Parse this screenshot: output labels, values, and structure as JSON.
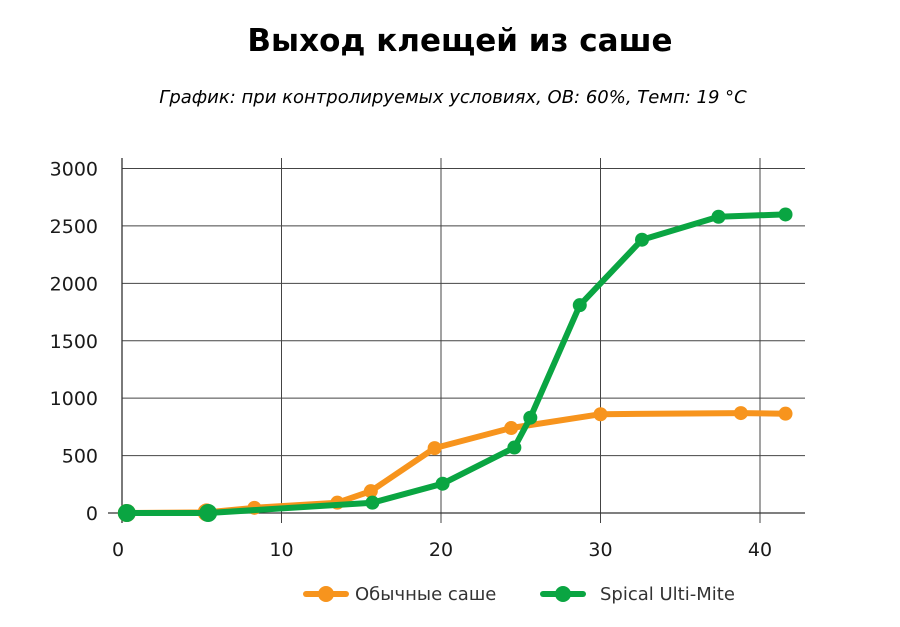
{
  "chart_data": {
    "type": "line",
    "title": "Выход клещей из саше",
    "subtitle": "График: при контролируемых условиях, ОВ: 60%, Темп: 19 °C",
    "xlabel": "",
    "ylabel": "",
    "xlim": [
      0,
      42
    ],
    "ylim": [
      0,
      3000
    ],
    "x_ticks": [
      0,
      10,
      20,
      30,
      40
    ],
    "y_ticks": [
      0,
      500,
      1000,
      1500,
      2000,
      2500,
      3000
    ],
    "grid": true,
    "legend_position": "bottom",
    "series": [
      {
        "name": "Обычные саше",
        "color": "#f7941d",
        "points": [
          {
            "x": 0.3,
            "y": 0
          },
          {
            "x": 5.3,
            "y": 5
          },
          {
            "x": 8.3,
            "y": 45
          },
          {
            "x": 13.5,
            "y": 90
          },
          {
            "x": 15.6,
            "y": 190
          },
          {
            "x": 19.6,
            "y": 565
          },
          {
            "x": 24.4,
            "y": 740
          },
          {
            "x": 30.0,
            "y": 860
          },
          {
            "x": 38.8,
            "y": 870
          },
          {
            "x": 41.6,
            "y": 865
          }
        ]
      },
      {
        "name": "Spical Ulti-Mite",
        "color": "#0aa542",
        "points": [
          {
            "x": 0.3,
            "y": 0
          },
          {
            "x": 5.4,
            "y": 0
          },
          {
            "x": 15.7,
            "y": 90
          },
          {
            "x": 20.1,
            "y": 255
          },
          {
            "x": 24.6,
            "y": 570
          },
          {
            "x": 25.6,
            "y": 830
          },
          {
            "x": 28.7,
            "y": 1810
          },
          {
            "x": 32.6,
            "y": 2380
          },
          {
            "x": 37.4,
            "y": 2580
          },
          {
            "x": 41.6,
            "y": 2600
          }
        ]
      }
    ]
  }
}
